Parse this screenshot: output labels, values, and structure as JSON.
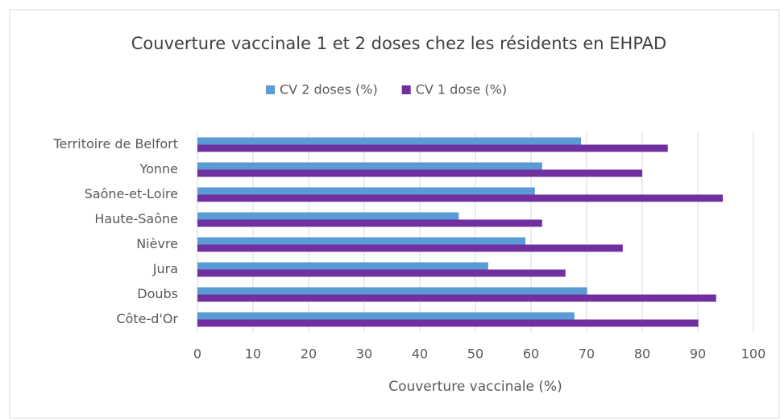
{
  "chart_data": {
    "type": "barh",
    "title": "Couverture vaccinale 1 et 2 doses chez les résidents en EHPAD",
    "xlabel": "Couverture vaccinale (%)",
    "categories": [
      "Côte-d'Or",
      "Doubs",
      "Jura",
      "Nièvre",
      "Haute-Saône",
      "Saône-et-Loire",
      "Yonne",
      "Territoire de Belfort"
    ],
    "series": [
      {
        "name": "CV 2 doses (%)",
        "color": "#5b9bd5",
        "values": [
          67.8,
          70.1,
          52.3,
          59.0,
          47.0,
          60.7,
          62.0,
          69.0
        ]
      },
      {
        "name": "CV 1 dose (%)",
        "color": "#7030a0",
        "values": [
          90.1,
          93.3,
          66.2,
          76.5,
          62.0,
          94.5,
          80.0,
          84.6
        ]
      }
    ],
    "xlim": [
      0,
      100
    ],
    "xticks": [
      0,
      10,
      20,
      30,
      40,
      50,
      60,
      70,
      80,
      90,
      100
    ],
    "grid": true,
    "legend": "top"
  }
}
